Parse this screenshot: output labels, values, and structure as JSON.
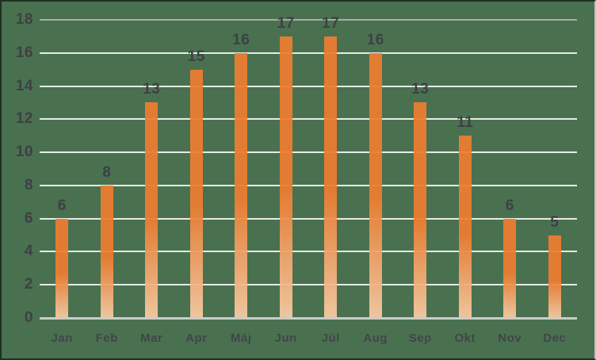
{
  "chart_data": {
    "type": "bar",
    "categories": [
      "Jan",
      "Feb",
      "Mar",
      "Apr",
      "Máj",
      "Jun",
      "Júl",
      "Aug",
      "Sep",
      "Okt",
      "Nov",
      "Dec"
    ],
    "values": [
      6,
      8,
      13,
      15,
      16,
      17,
      17,
      16,
      13,
      11,
      6,
      5
    ],
    "title": "",
    "xlabel": "",
    "ylabel": "",
    "ylim": [
      0,
      18
    ],
    "yticks": [
      0,
      2,
      4,
      6,
      8,
      10,
      12,
      14,
      16,
      18
    ],
    "grid": "horizontal-only",
    "legend": "none",
    "show_data_labels": true,
    "colors": {
      "background": "#497150",
      "bar_fill_top": "#ED7D31",
      "bar_fill_bottom": "#F8CBA4",
      "gridline": "#E8EBE4",
      "top_gridline": "#A9ACA7",
      "axis_baseline": "#C9CDC6",
      "label_text": "#3E4043",
      "month_text": "#42454A"
    }
  }
}
